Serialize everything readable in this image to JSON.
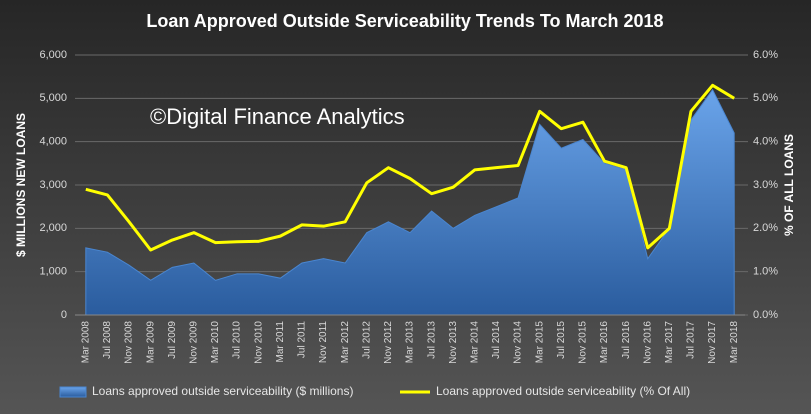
{
  "chart_data": {
    "type": "area-line",
    "title": "Loan Approved Outside Serviceability Trends To March 2018",
    "annotation": "©Digital Finance Analytics",
    "y_label": "$ MILLIONS NEW LOANS",
    "y2_label": "% OF ALL LOANS",
    "categories": [
      "Mar 2008",
      "Jul 2008",
      "Nov 2008",
      "Mar 2009",
      "Jul 2009",
      "Nov 2009",
      "Mar 2010",
      "Jul 2010",
      "Nov 2010",
      "Mar 2011",
      "Jul 2011",
      "Nov 2011",
      "Mar 2012",
      "Jul 2012",
      "Nov 2012",
      "Mar 2013",
      "Jul 2013",
      "Nov 2013",
      "Mar 2014",
      "Jul 2014",
      "Nov 2014",
      "Mar 2015",
      "Jul 2015",
      "Nov 2015",
      "Mar 2016",
      "Jul 2016",
      "Nov 2016",
      "Mar 2017",
      "Jul 2017",
      "Nov 2017",
      "Mar 2018"
    ],
    "series": [
      {
        "name": "Loans approved outside serviceability ($ millions)",
        "color": "#4a86d0",
        "chart": "area",
        "values": [
          1550,
          1450,
          1150,
          800,
          1100,
          1200,
          800,
          950,
          950,
          850,
          1200,
          1300,
          1200,
          1900,
          2150,
          1900,
          2400,
          2000,
          2300,
          2500,
          2700,
          4400,
          3850,
          4050,
          3500,
          3350,
          1300,
          2000,
          4500,
          5200,
          4200
        ]
      },
      {
        "name": "Loans approved outside serviceability (% Of All)",
        "color": "#ffff00",
        "chart": "line",
        "axis": "y2",
        "values": [
          2.9,
          2.77,
          2.15,
          1.5,
          1.73,
          1.9,
          1.67,
          1.69,
          1.7,
          1.82,
          2.08,
          2.05,
          2.15,
          3.05,
          3.4,
          3.15,
          2.8,
          2.95,
          3.35,
          3.4,
          3.45,
          4.7,
          4.3,
          4.45,
          3.55,
          3.4,
          1.55,
          2.0,
          4.7,
          5.3,
          5.0
        ]
      }
    ],
    "ylim": [
      0,
      6000
    ],
    "yticks": [
      0,
      {
        "value": 1000,
        "label": "1,000"
      },
      {
        "value": 2000,
        "label": "2,000"
      },
      {
        "value": 3000,
        "label": "3,000"
      },
      {
        "value": 4000,
        "label": "4,000"
      },
      {
        "value": 5000,
        "label": "5,000"
      },
      {
        "value": 6000,
        "label": "6,000"
      }
    ],
    "y2lim": [
      0,
      6
    ],
    "y2ticks": [
      {
        "value": 0,
        "label": "0.0%"
      },
      {
        "value": 1,
        "label": "1.0%"
      },
      {
        "value": 2,
        "label": "2.0%"
      },
      {
        "value": 3,
        "label": "3.0%"
      },
      {
        "value": 4,
        "label": "4.0%"
      },
      {
        "value": 5,
        "label": "5.0%"
      },
      {
        "value": 6,
        "label": "6.0%"
      }
    ],
    "grid": true,
    "legend": "bottom"
  }
}
